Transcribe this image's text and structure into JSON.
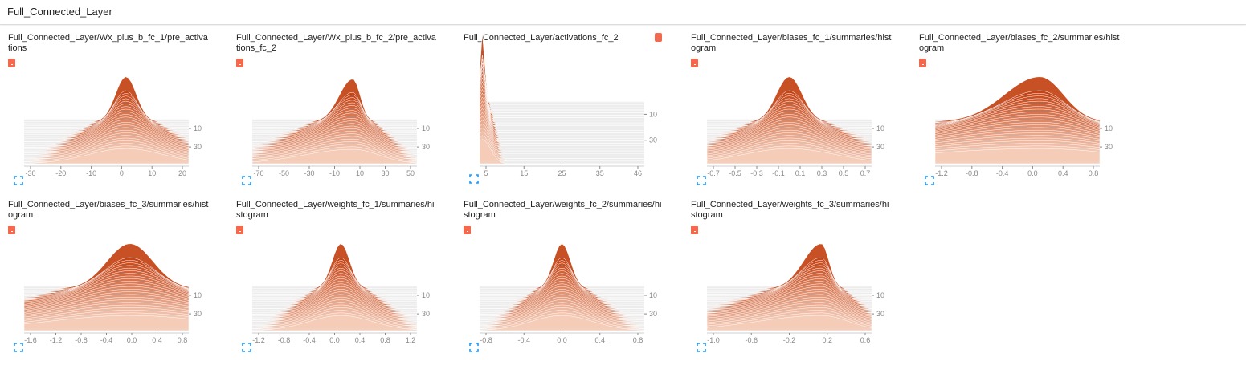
{
  "section": {
    "title": "Full_Connected_Layer"
  },
  "colors": {
    "chip": "#f4694e",
    "dark": "#c23d0d",
    "light": "#fde5d6",
    "expand": "#2196f3",
    "plot_bg": "#ececec",
    "tick": "#888888"
  },
  "cards": [
    {
      "title": "Full_Connected_Layer/Wx_plus_b_fc_1/pre_activations",
      "chip_inline": false,
      "x_ticks": [
        "-30",
        "-20",
        "-10",
        "0",
        "10",
        "20"
      ],
      "y_ticks": [
        "10",
        "30"
      ],
      "x_range": [
        -34,
        21
      ],
      "center": 0,
      "spread": 5,
      "peak": 1.0,
      "skew": 0,
      "kind": "spike"
    },
    {
      "title": "Full_Connected_Layer/Wx_plus_b_fc_2/pre_activations_fc_2",
      "chip_inline": false,
      "x_ticks": [
        "-70",
        "-50",
        "-30",
        "-10",
        "10",
        "30",
        "50"
      ],
      "y_ticks": [
        "10",
        "30"
      ],
      "x_range": [
        -80,
        51
      ],
      "center": 0,
      "spread": 12,
      "peak": 0.95,
      "skew": -0.6,
      "kind": "skewed"
    },
    {
      "title": "Full_Connected_Layer/activations_fc_2",
      "chip_inline": true,
      "x_ticks": [
        "5",
        "15",
        "25",
        "35",
        "46"
      ],
      "y_ticks": [
        "10",
        "30"
      ],
      "x_range": [
        0,
        46
      ],
      "center": 0.8,
      "spread": 0.9,
      "peak": 1.5,
      "skew": 0,
      "kind": "relu"
    },
    {
      "title": "Full_Connected_Layer/biases_fc_1/summaries/histogram",
      "chip_inline": false,
      "x_ticks": [
        "-0.7",
        "-0.5",
        "-0.3",
        "-0.1",
        "0.1",
        "0.3",
        "0.5",
        "0.7"
      ],
      "y_ticks": [
        "10",
        "30"
      ],
      "x_range": [
        -0.8,
        0.8
      ],
      "center": 0,
      "spread": 0.18,
      "peak": 1.0,
      "skew": 0,
      "kind": "spike"
    },
    {
      "title": "Full_Connected_Layer/biases_fc_2/summaries/histogram",
      "chip_inline": false,
      "x_ticks": [
        "-1.2",
        "-0.8",
        "-0.4",
        "0.0",
        "0.4",
        "0.8"
      ],
      "y_ticks": [
        "10",
        "30"
      ],
      "x_range": [
        -1.4,
        0.8
      ],
      "center": 0,
      "spread": 0.35,
      "peak": 1.0,
      "skew": -0.4,
      "kind": "wide"
    },
    {
      "title": "Full_Connected_Layer/biases_fc_3/summaries/histogram",
      "chip_inline": false,
      "x_ticks": [
        "-1.6",
        "-1.2",
        "-0.8",
        "-0.4",
        "0.0",
        "0.4",
        "0.8"
      ],
      "y_ticks": [
        "10",
        "30"
      ],
      "x_range": [
        -1.8,
        1.0
      ],
      "center": 0,
      "spread": 0.35,
      "peak": 1.0,
      "skew": 0,
      "kind": "wide"
    },
    {
      "title": "Full_Connected_Layer/weights_fc_1/summaries/histogram",
      "chip_inline": false,
      "x_ticks": [
        "-1.2",
        "-0.8",
        "-0.4",
        "0.0",
        "0.4",
        "0.8",
        "1.2"
      ],
      "y_ticks": [
        "10",
        "30"
      ],
      "x_range": [
        -1.4,
        1.2
      ],
      "center": 0,
      "spread": 0.2,
      "peak": 1.0,
      "skew": 0,
      "kind": "spike"
    },
    {
      "title": "Full_Connected_Layer/weights_fc_2/summaries/histogram",
      "chip_inline": false,
      "x_ticks": [
        "-0.8",
        "-0.4",
        "0.0",
        "0.4",
        "0.8"
      ],
      "y_ticks": [
        "10",
        "30"
      ],
      "x_range": [
        -1.0,
        1.0
      ],
      "center": 0,
      "spread": 0.15,
      "peak": 1.0,
      "skew": 0,
      "kind": "spike"
    },
    {
      "title": "Full_Connected_Layer/weights_fc_3/summaries/histogram",
      "chip_inline": false,
      "x_ticks": [
        "-1.0",
        "-0.6",
        "-0.2",
        "0.2",
        "0.6"
      ],
      "y_ticks": [
        "10",
        "30"
      ],
      "x_range": [
        -1.2,
        0.6
      ],
      "center": 0.05,
      "spread": 0.2,
      "peak": 1.0,
      "skew": -0.8,
      "kind": "skewed"
    }
  ]
}
